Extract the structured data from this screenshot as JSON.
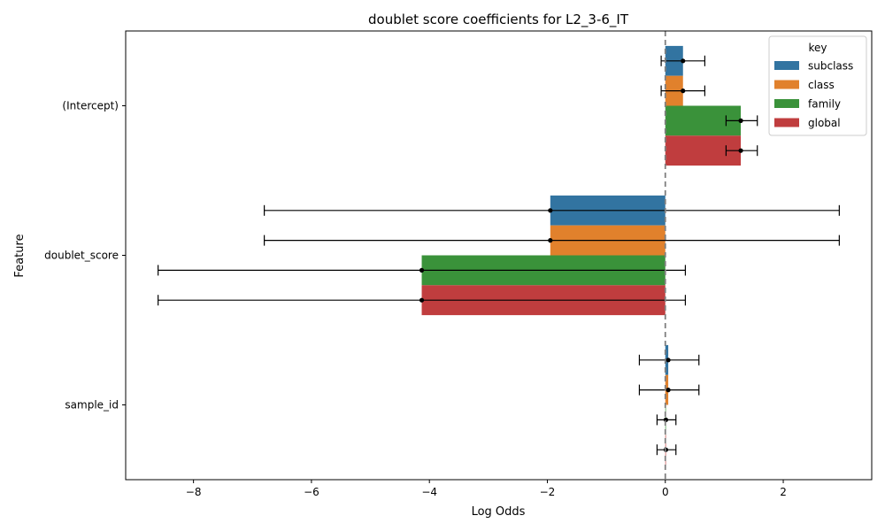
{
  "chart_data": {
    "type": "bar",
    "orientation": "horizontal",
    "title": "doublet score coefficients for L2_3-6_IT",
    "xlabel": "Log Odds",
    "ylabel": "Feature",
    "xlim": [
      -9.15,
      3.5
    ],
    "xticks": [
      -8,
      -6,
      -4,
      -2,
      0,
      2
    ],
    "xtick_labels": [
      "−8",
      "−6",
      "−4",
      "−2",
      "0",
      "2"
    ],
    "categories": [
      "(Intercept)",
      "doublet_score",
      "sample_id"
    ],
    "reference_line": {
      "x": 0,
      "style": "dashed",
      "color": "#808080"
    },
    "legend": {
      "title": "key",
      "position": "top-right"
    },
    "grid": false,
    "series": [
      {
        "name": "subclass",
        "color": "#3274a1",
        "values": [
          0.3,
          -1.95,
          0.05
        ],
        "ci_low": [
          -0.07,
          -6.8,
          -0.44
        ],
        "ci_high": [
          0.67,
          2.95,
          0.57
        ]
      },
      {
        "name": "class",
        "color": "#e1812c",
        "values": [
          0.3,
          -1.95,
          0.05
        ],
        "ci_low": [
          -0.07,
          -6.8,
          -0.44
        ],
        "ci_high": [
          0.67,
          2.95,
          0.57
        ]
      },
      {
        "name": "family",
        "color": "#3a923a",
        "values": [
          1.28,
          -4.13,
          0.01
        ],
        "ci_low": [
          1.03,
          -8.6,
          -0.14
        ],
        "ci_high": [
          1.56,
          0.34,
          0.18
        ]
      },
      {
        "name": "global",
        "color": "#c03d3e",
        "values": [
          1.28,
          -4.13,
          0.01
        ],
        "ci_low": [
          1.03,
          -8.6,
          -0.14
        ],
        "ci_high": [
          1.56,
          0.34,
          0.18
        ]
      }
    ]
  }
}
